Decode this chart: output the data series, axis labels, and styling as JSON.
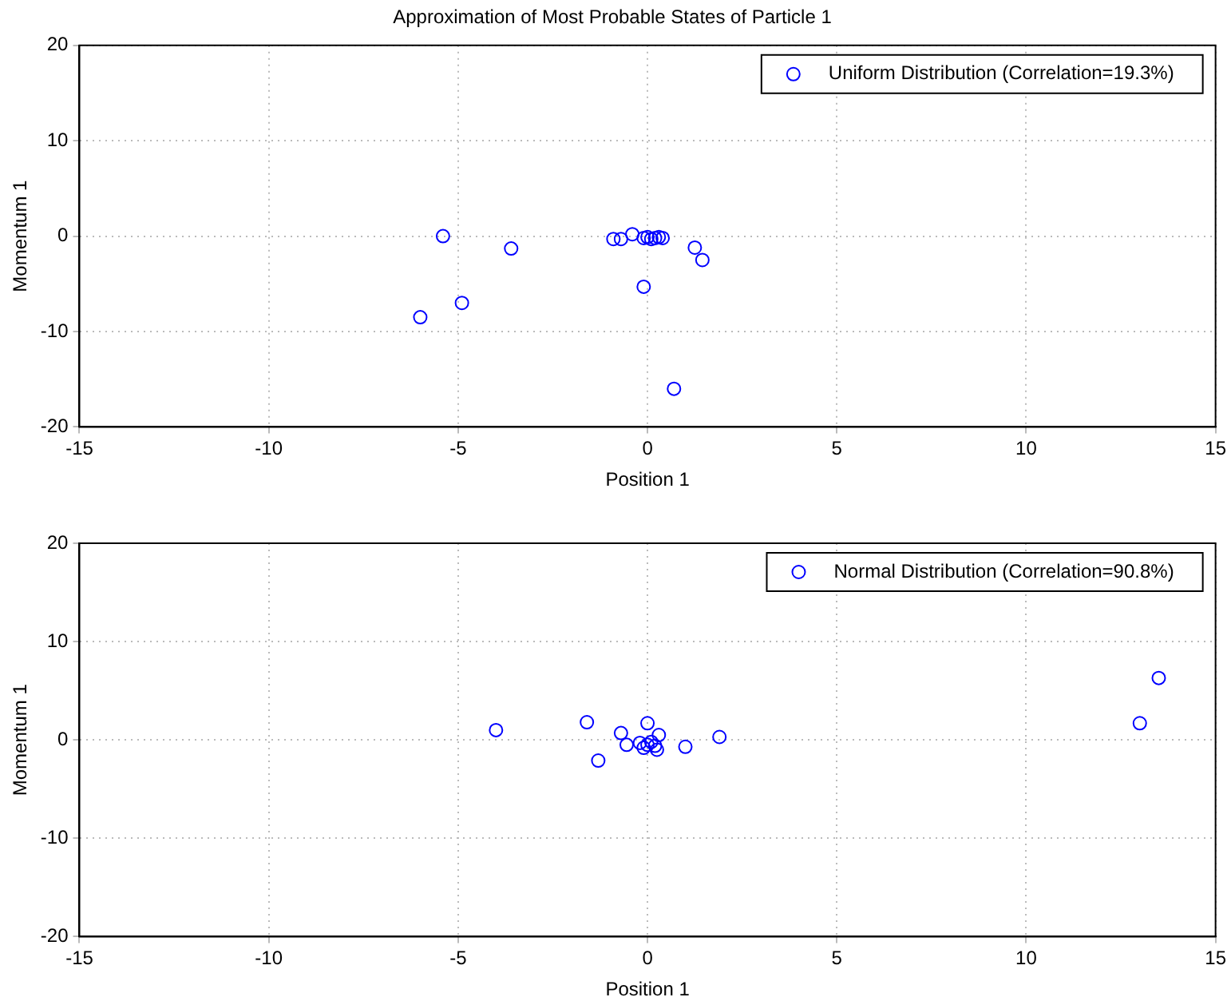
{
  "chart_data": [
    {
      "type": "scatter",
      "title": "Approximation of Most Probable States of Particle 1",
      "xlabel": "Position 1",
      "ylabel": "Momentum 1",
      "xlim": [
        -15,
        15
      ],
      "xticks": [
        -15,
        -10,
        -5,
        0,
        5,
        10,
        15
      ],
      "ylim": [
        -20,
        20
      ],
      "yticks": [
        -20,
        -10,
        0,
        10,
        20
      ],
      "grid": true,
      "legend": "top right",
      "marker": "circle",
      "series": [
        {
          "name": "Uniform Distribution (Correlation=19.3%)",
          "color": "#0000ff",
          "x": [
            -5.4,
            -3.6,
            -4.9,
            -6.0,
            -0.9,
            -0.7,
            -0.4,
            -0.1,
            0,
            0.1,
            0.2,
            0.3,
            0.4,
            1.25,
            1.45,
            -0.1,
            0.7
          ],
          "values": [
            0,
            -1.3,
            -7.0,
            -8.5,
            -0.3,
            -0.3,
            0.2,
            -0.2,
            -0.1,
            -0.3,
            -0.2,
            -0.1,
            -0.2,
            -1.2,
            -2.5,
            -5.3,
            -16.0
          ]
        }
      ]
    },
    {
      "type": "scatter",
      "xlabel": "Position 1",
      "ylabel": "Momentum 1",
      "xlim": [
        -15,
        15
      ],
      "xticks": [
        -15,
        -10,
        -5,
        0,
        5,
        10,
        15
      ],
      "ylim": [
        -20,
        20
      ],
      "yticks": [
        -20,
        -10,
        0,
        10,
        20
      ],
      "grid": true,
      "legend": "top right",
      "marker": "circle",
      "series": [
        {
          "name": "Normal Distribution (Correlation=90.8%)",
          "color": "#0000ff",
          "x": [
            -4.0,
            -1.6,
            -1.3,
            -0.7,
            0,
            -0.55,
            1.0,
            1.9,
            0.3,
            0.25,
            -0.2,
            0,
            0.1,
            0.2,
            -0.1,
            13.5,
            13.0
          ],
          "values": [
            1.0,
            1.8,
            -2.1,
            0.7,
            1.7,
            -0.5,
            -0.7,
            0.3,
            0.5,
            -1.0,
            -0.3,
            -0.5,
            -0.2,
            -0.6,
            -0.8,
            6.3,
            1.7
          ]
        }
      ]
    }
  ]
}
